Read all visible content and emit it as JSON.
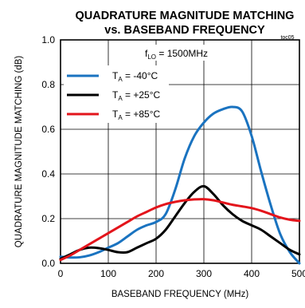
{
  "chart_data": {
    "type": "line",
    "title": "QUADRATURE MAGNITUDE MATCHING",
    "subtitle": "vs. BASEBAND FREQUENCY",
    "figure_id": "toc05",
    "annotation": {
      "main": "f",
      "sub": "LO",
      "rest": " = 1500MHz"
    },
    "xlabel": "BASEBAND FREQUENCY (MHz)",
    "ylabel": "QUADRATURE MAGNITUDE MATCHING (dB)",
    "xlim": [
      0,
      500
    ],
    "ylim": [
      0,
      1.0
    ],
    "xticks": [
      0,
      100,
      200,
      300,
      400,
      500
    ],
    "xtick_labels": [
      "0",
      "100",
      "200",
      "300",
      "400",
      "500"
    ],
    "yticks": [
      0,
      0.2,
      0.4,
      0.6,
      0.8,
      1.0
    ],
    "ytick_labels": [
      "0.0",
      "0.2",
      "0.4",
      "0.6",
      "0.8",
      "1.0"
    ],
    "grid": true,
    "legend_position": "top-left",
    "series": [
      {
        "legend_main": "T",
        "legend_sub": "A",
        "legend_rest": " = -40°C",
        "color": "#1a73c0",
        "x": [
          0,
          20,
          40,
          60,
          80,
          100,
          120,
          140,
          160,
          180,
          200,
          220,
          240,
          260,
          280,
          300,
          320,
          340,
          360,
          380,
          400,
          420,
          440,
          460,
          480,
          500
        ],
        "y": [
          0.03,
          0.026,
          0.027,
          0.035,
          0.05,
          0.07,
          0.09,
          0.12,
          0.15,
          0.17,
          0.185,
          0.22,
          0.33,
          0.47,
          0.57,
          0.63,
          0.67,
          0.69,
          0.7,
          0.68,
          0.57,
          0.41,
          0.26,
          0.13,
          0.05,
          0.0
        ]
      },
      {
        "legend_main": "T",
        "legend_sub": "A",
        "legend_rest": " = +25°C",
        "color": "#000000",
        "x": [
          0,
          20,
          40,
          60,
          80,
          100,
          120,
          140,
          160,
          180,
          200,
          220,
          240,
          260,
          280,
          300,
          320,
          340,
          360,
          380,
          400,
          420,
          440,
          460,
          480,
          500
        ],
        "y": [
          0.02,
          0.04,
          0.06,
          0.07,
          0.068,
          0.06,
          0.05,
          0.05,
          0.07,
          0.09,
          0.11,
          0.15,
          0.21,
          0.27,
          0.32,
          0.345,
          0.31,
          0.26,
          0.22,
          0.19,
          0.17,
          0.15,
          0.12,
          0.09,
          0.06,
          0.04
        ]
      },
      {
        "legend_main": "T",
        "legend_sub": "A",
        "legend_rest": " = +85°C",
        "color": "#e3141b",
        "x": [
          0,
          20,
          40,
          60,
          80,
          100,
          120,
          140,
          160,
          180,
          200,
          220,
          240,
          260,
          280,
          300,
          320,
          340,
          360,
          380,
          400,
          420,
          440,
          460,
          480,
          500
        ],
        "y": [
          0.015,
          0.035,
          0.06,
          0.085,
          0.11,
          0.135,
          0.16,
          0.185,
          0.21,
          0.23,
          0.25,
          0.265,
          0.275,
          0.282,
          0.286,
          0.287,
          0.282,
          0.272,
          0.262,
          0.255,
          0.247,
          0.235,
          0.22,
          0.205,
          0.195,
          0.19
        ]
      }
    ]
  }
}
